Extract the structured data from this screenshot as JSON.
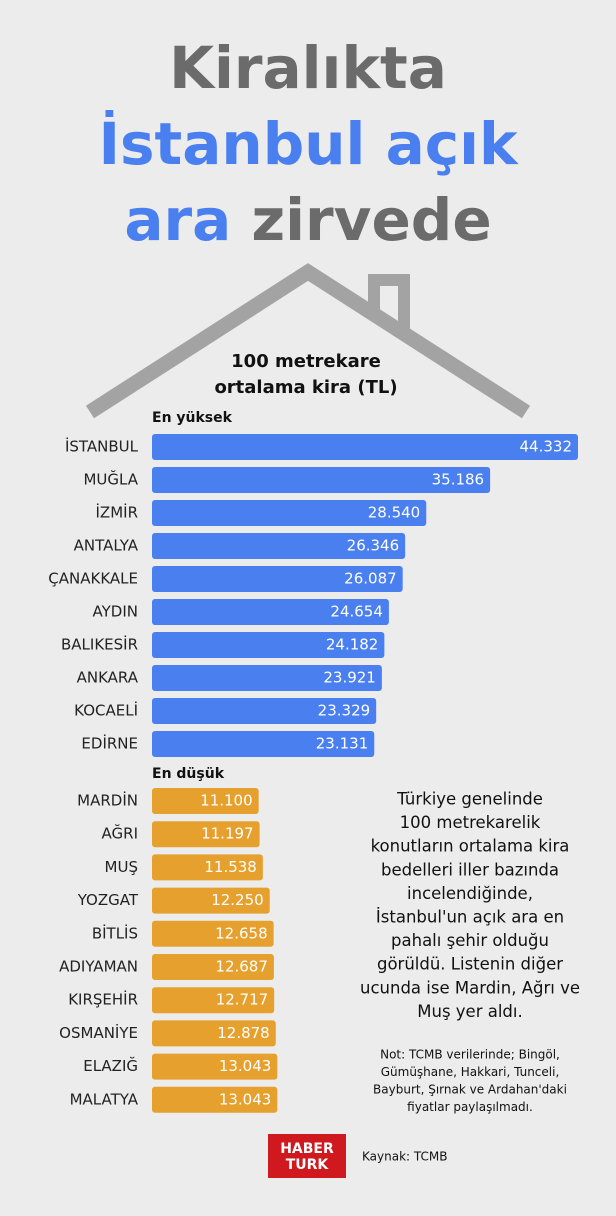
{
  "header": {
    "title_lines": [
      [
        "Kiralıkta"
      ],
      [
        "İstanbul açık"
      ],
      [
        "ara",
        "zirvede"
      ]
    ],
    "subtitle_lines": [
      "100 metrekare",
      "ortalama kira (TL)"
    ]
  },
  "chart_data": [
    {
      "type": "bar",
      "orientation": "horizontal",
      "title": "En yüksek",
      "color": "#4a7ff0",
      "categories": [
        "İSTANBUL",
        "MUĞLA",
        "İZMİR",
        "ANTALYA",
        "ÇANAKKALE",
        "AYDIN",
        "BALIKESİR",
        "ANKARA",
        "KOCAELİ",
        "EDİRNE"
      ],
      "values": [
        44332,
        35186,
        28540,
        26346,
        26087,
        24654,
        24182,
        23921,
        23329,
        23131
      ],
      "value_labels": [
        "44.332",
        "35.186",
        "28.540",
        "26.346",
        "26.087",
        "24.654",
        "24.182",
        "23.921",
        "23.329",
        "23.131"
      ]
    },
    {
      "type": "bar",
      "orientation": "horizontal",
      "title": "En düşük",
      "color": "#e6a02d",
      "categories": [
        "MARDİN",
        "AĞRI",
        "MUŞ",
        "YOZGAT",
        "BİTLİS",
        "ADIYAMAN",
        "KIRŞEHİR",
        "OSMANİYE",
        "ELAZIĞ",
        "MALATYA"
      ],
      "values": [
        11100,
        11197,
        11538,
        12250,
        12658,
        12687,
        12717,
        12878,
        13043,
        13043
      ],
      "value_labels": [
        "11.100",
        "11.197",
        "11.538",
        "12.250",
        "12.658",
        "12.687",
        "12.717",
        "12.878",
        "13.043",
        "13.043"
      ]
    }
  ],
  "paragraph_lines": [
    "Türkiye genelinde",
    "100 metrekarelik",
    "konutların ortalama kira",
    "bedelleri iller bazında",
    "incelendiğinde,",
    "İstanbul'un açık ara en",
    "pahalı şehir olduğu",
    "görüldü. Listenin diğer",
    "ucunda ise Mardin, Ağrı ve",
    "Muş yer aldı."
  ],
  "note_lines": [
    "Not: TCMB verilerinde; Bingöl,",
    "Gümüşhane, Hakkari, Tunceli,",
    "Bayburt, Şırnak ve Ardahan'daki",
    "fiyatlar paylaşılmadı."
  ],
  "footer": {
    "logo_lines": [
      "HABER",
      "TURK"
    ],
    "source": "Kaynak: TCMB"
  }
}
